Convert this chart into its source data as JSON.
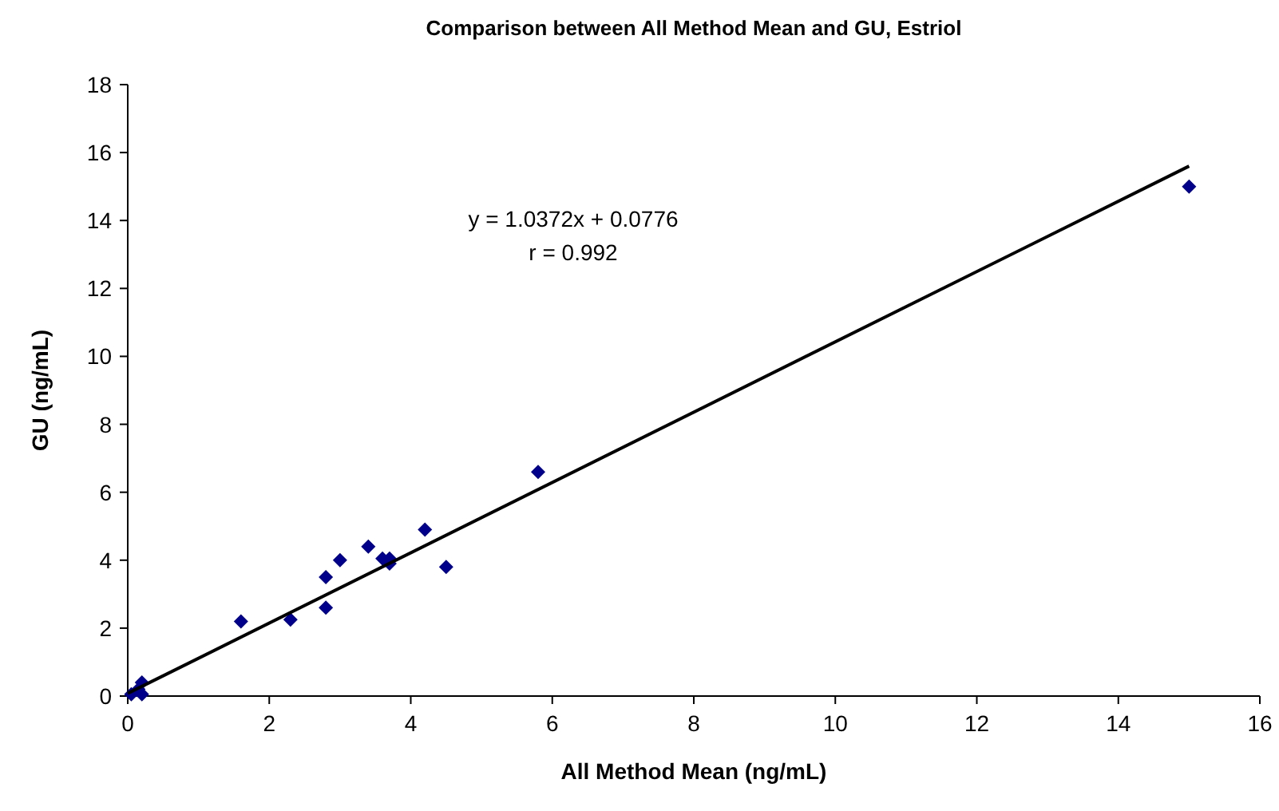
{
  "chart_data": {
    "type": "scatter",
    "title": "Comparison between All Method Mean and GU, Estriol",
    "xlabel": "All Method Mean (ng/mL)",
    "ylabel": "GU (ng/mL)",
    "xlim": [
      0,
      16
    ],
    "xticks": [
      0,
      2,
      4,
      6,
      8,
      10,
      12,
      14,
      16
    ],
    "ylim": [
      0,
      18
    ],
    "yticks": [
      0,
      2,
      4,
      6,
      8,
      10,
      12,
      14,
      16,
      18
    ],
    "grid": false,
    "annotations": [
      "y = 1.0372x + 0.0776",
      "r = 0.992"
    ],
    "series": [
      {
        "marker": "diamond",
        "color": "#00008b",
        "x": [
          0.05,
          0.2,
          0.2,
          0.15,
          1.6,
          2.3,
          2.8,
          2.8,
          3.0,
          3.4,
          3.6,
          3.7,
          3.7,
          4.2,
          4.5,
          5.8,
          15
        ],
        "values": [
          0.05,
          0.05,
          0.4,
          0.2,
          2.2,
          2.25,
          3.5,
          2.6,
          4.0,
          4.4,
          4.05,
          3.9,
          4.05,
          4.9,
          3.8,
          6.6,
          15
        ]
      },
      {
        "type": "line",
        "color": "#000000",
        "x": [
          0,
          15
        ],
        "values": [
          0.08,
          15.6
        ]
      }
    ]
  }
}
